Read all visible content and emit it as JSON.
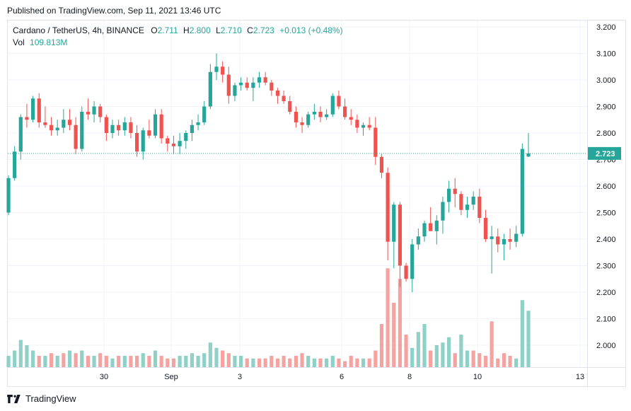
{
  "header": {
    "published": "Published on TradingView.com, Sep 11, 2021 13:46 UTC"
  },
  "legend": {
    "symbol": "Cardano / TetherUS, 4h, BINANCE",
    "o_label": "O",
    "o_value": "2.711",
    "h_label": "H",
    "h_value": "2.800",
    "l_label": "L",
    "l_value": "2.710",
    "c_label": "C",
    "c_value": "2.723",
    "change": "+0.013 (+0.48%)",
    "vol_label": "Vol",
    "vol_value": "109.813M"
  },
  "footer": {
    "brand": "TradingView"
  },
  "colors": {
    "up": "#26a69a",
    "down": "#ef5350",
    "up_vol": "#8fd1c7",
    "down_vol": "#f5a3a1",
    "price_tag": "#26a69a",
    "grid": "#f0f3fa",
    "text": "#131722"
  },
  "chart_data": {
    "type": "candlestick",
    "symbol": "Cardano / TetherUS",
    "interval": "4h",
    "exchange": "BINANCE",
    "y_ticks": [
      "2.000",
      "2.100",
      "2.200",
      "2.300",
      "2.400",
      "2.500",
      "2.600",
      "2.700",
      "2.800",
      "2.900",
      "3.000",
      "3.100",
      "3.200"
    ],
    "x_ticks": [
      "30",
      "Sep",
      "3",
      "6",
      "8",
      "10",
      "13"
    ],
    "last_price": "2.723",
    "ylim": [
      1.92,
      3.24
    ],
    "candles": [
      [
        2.5,
        2.64,
        2.49,
        2.63
      ],
      [
        2.63,
        2.75,
        2.62,
        2.73
      ],
      [
        2.73,
        2.87,
        2.7,
        2.86
      ],
      [
        2.86,
        2.91,
        2.82,
        2.85
      ],
      [
        2.85,
        2.94,
        2.84,
        2.93
      ],
      [
        2.93,
        2.95,
        2.82,
        2.84
      ],
      [
        2.84,
        2.9,
        2.82,
        2.83
      ],
      [
        2.83,
        2.86,
        2.79,
        2.81
      ],
      [
        2.81,
        2.85,
        2.79,
        2.82
      ],
      [
        2.82,
        2.89,
        2.8,
        2.85
      ],
      [
        2.85,
        2.89,
        2.81,
        2.83
      ],
      [
        2.83,
        2.86,
        2.72,
        2.74
      ],
      [
        2.74,
        2.9,
        2.73,
        2.88
      ],
      [
        2.88,
        2.93,
        2.85,
        2.87
      ],
      [
        2.87,
        2.92,
        2.84,
        2.9
      ],
      [
        2.9,
        2.91,
        2.84,
        2.86
      ],
      [
        2.86,
        2.87,
        2.77,
        2.8
      ],
      [
        2.8,
        2.85,
        2.78,
        2.83
      ],
      [
        2.83,
        2.85,
        2.79,
        2.81
      ],
      [
        2.81,
        2.86,
        2.79,
        2.84
      ],
      [
        2.84,
        2.86,
        2.78,
        2.8
      ],
      [
        2.8,
        2.83,
        2.71,
        2.73
      ],
      [
        2.73,
        2.82,
        2.7,
        2.81
      ],
      [
        2.81,
        2.85,
        2.78,
        2.79
      ],
      [
        2.79,
        2.89,
        2.78,
        2.87
      ],
      [
        2.87,
        2.89,
        2.76,
        2.78
      ],
      [
        2.78,
        2.79,
        2.73,
        2.76
      ],
      [
        2.76,
        2.79,
        2.72,
        2.75
      ],
      [
        2.75,
        2.8,
        2.72,
        2.77
      ],
      [
        2.77,
        2.81,
        2.74,
        2.8
      ],
      [
        2.8,
        2.85,
        2.77,
        2.83
      ],
      [
        2.83,
        2.87,
        2.81,
        2.84
      ],
      [
        2.84,
        2.92,
        2.83,
        2.9
      ],
      [
        2.9,
        3.06,
        2.89,
        3.03
      ],
      [
        3.03,
        3.1,
        3.0,
        3.05
      ],
      [
        3.05,
        3.07,
        2.99,
        3.02
      ],
      [
        3.02,
        3.05,
        2.91,
        2.94
      ],
      [
        2.94,
        2.99,
        2.92,
        2.98
      ],
      [
        2.98,
        3.01,
        2.96,
        2.99
      ],
      [
        2.99,
        3.01,
        2.96,
        2.97
      ],
      [
        2.97,
        3.01,
        2.92,
        2.99
      ],
      [
        2.99,
        3.03,
        2.97,
        3.01
      ],
      [
        3.01,
        3.03,
        2.98,
        2.99
      ],
      [
        2.99,
        3.0,
        2.94,
        2.96
      ],
      [
        2.96,
        2.97,
        2.91,
        2.94
      ],
      [
        2.94,
        2.96,
        2.91,
        2.92
      ],
      [
        2.92,
        2.94,
        2.87,
        2.88
      ],
      [
        2.88,
        2.9,
        2.82,
        2.84
      ],
      [
        2.84,
        2.86,
        2.8,
        2.83
      ],
      [
        2.83,
        2.88,
        2.82,
        2.87
      ],
      [
        2.87,
        2.91,
        2.85,
        2.88
      ],
      [
        2.88,
        2.9,
        2.84,
        2.86
      ],
      [
        2.86,
        2.89,
        2.85,
        2.87
      ],
      [
        2.87,
        2.95,
        2.86,
        2.94
      ],
      [
        2.94,
        2.96,
        2.89,
        2.9
      ],
      [
        2.9,
        2.93,
        2.85,
        2.86
      ],
      [
        2.86,
        2.89,
        2.83,
        2.85
      ],
      [
        2.85,
        2.87,
        2.8,
        2.82
      ],
      [
        2.82,
        2.84,
        2.79,
        2.83
      ],
      [
        2.83,
        2.86,
        2.81,
        2.82
      ],
      [
        2.82,
        2.86,
        2.68,
        2.71
      ],
      [
        2.71,
        2.72,
        2.63,
        2.65
      ],
      [
        2.65,
        2.67,
        2.32,
        2.39
      ],
      [
        2.39,
        2.54,
        2.29,
        2.53
      ],
      [
        2.53,
        2.54,
        2.22,
        2.3
      ],
      [
        2.3,
        2.31,
        2.24,
        2.25
      ],
      [
        2.25,
        2.4,
        2.2,
        2.38
      ],
      [
        2.38,
        2.44,
        2.36,
        2.41
      ],
      [
        2.41,
        2.47,
        2.39,
        2.46
      ],
      [
        2.46,
        2.52,
        2.44,
        2.43
      ],
      [
        2.43,
        2.49,
        2.38,
        2.47
      ],
      [
        2.47,
        2.56,
        2.42,
        2.54
      ],
      [
        2.54,
        2.62,
        2.5,
        2.59
      ],
      [
        2.59,
        2.63,
        2.52,
        2.57
      ],
      [
        2.57,
        2.58,
        2.49,
        2.51
      ],
      [
        2.51,
        2.56,
        2.48,
        2.53
      ],
      [
        2.53,
        2.58,
        2.51,
        2.56
      ],
      [
        2.56,
        2.59,
        2.46,
        2.48
      ],
      [
        2.48,
        2.51,
        2.39,
        2.4
      ],
      [
        2.4,
        2.45,
        2.27,
        2.41
      ],
      [
        2.41,
        2.44,
        2.35,
        2.38
      ],
      [
        2.38,
        2.42,
        2.32,
        2.4
      ],
      [
        2.4,
        2.44,
        2.36,
        2.39
      ],
      [
        2.39,
        2.45,
        2.37,
        2.42
      ],
      [
        2.42,
        2.76,
        2.41,
        2.74
      ],
      [
        2.711,
        2.8,
        2.71,
        2.723
      ]
    ],
    "volumes": [
      [
        1.96,
        1
      ],
      [
        1.98,
        1
      ],
      [
        2.02,
        1
      ],
      [
        2.0,
        1
      ],
      [
        1.98,
        1
      ],
      [
        1.96,
        0
      ],
      [
        1.96,
        1
      ],
      [
        1.97,
        0
      ],
      [
        1.96,
        1
      ],
      [
        1.97,
        0
      ],
      [
        1.98,
        1
      ],
      [
        1.97,
        0
      ],
      [
        1.98,
        1
      ],
      [
        1.96,
        0
      ],
      [
        1.96,
        1
      ],
      [
        1.97,
        0
      ],
      [
        1.96,
        0
      ],
      [
        1.95,
        1
      ],
      [
        1.96,
        0
      ],
      [
        1.96,
        1
      ],
      [
        1.96,
        0
      ],
      [
        1.96,
        0
      ],
      [
        1.97,
        1
      ],
      [
        1.96,
        0
      ],
      [
        1.98,
        1
      ],
      [
        1.96,
        0
      ],
      [
        1.95,
        0
      ],
      [
        1.95,
        0
      ],
      [
        1.96,
        1
      ],
      [
        1.96,
        1
      ],
      [
        1.97,
        1
      ],
      [
        1.96,
        1
      ],
      [
        1.97,
        1
      ],
      [
        2.01,
        1
      ],
      [
        1.99,
        1
      ],
      [
        1.98,
        0
      ],
      [
        1.97,
        0
      ],
      [
        1.96,
        1
      ],
      [
        1.96,
        1
      ],
      [
        1.95,
        0
      ],
      [
        1.95,
        1
      ],
      [
        1.95,
        0
      ],
      [
        1.95,
        0
      ],
      [
        1.96,
        0
      ],
      [
        1.95,
        0
      ],
      [
        1.96,
        0
      ],
      [
        1.95,
        0
      ],
      [
        1.96,
        0
      ],
      [
        1.97,
        0
      ],
      [
        1.96,
        1
      ],
      [
        1.95,
        1
      ],
      [
        1.95,
        0
      ],
      [
        1.95,
        1
      ],
      [
        1.96,
        1
      ],
      [
        1.95,
        0
      ],
      [
        1.94,
        0
      ],
      [
        1.96,
        0
      ],
      [
        1.95,
        0
      ],
      [
        1.95,
        1
      ],
      [
        1.95,
        0
      ],
      [
        1.98,
        0
      ],
      [
        2.08,
        0
      ],
      [
        2.29,
        0
      ],
      [
        2.16,
        0
      ],
      [
        2.25,
        0
      ],
      [
        2.04,
        0
      ],
      [
        1.99,
        1
      ],
      [
        2.05,
        1
      ],
      [
        2.08,
        1
      ],
      [
        1.98,
        0
      ],
      [
        2.0,
        1
      ],
      [
        2.01,
        1
      ],
      [
        2.03,
        1
      ],
      [
        1.97,
        0
      ],
      [
        2.04,
        1
      ],
      [
        1.98,
        1
      ],
      [
        1.98,
        0
      ],
      [
        1.97,
        0
      ],
      [
        1.96,
        0
      ],
      [
        2.09,
        0
      ],
      [
        1.95,
        0
      ],
      [
        1.97,
        0
      ],
      [
        1.96,
        0
      ],
      [
        1.95,
        1
      ],
      [
        2.17,
        1
      ],
      [
        2.13,
        1
      ]
    ]
  }
}
